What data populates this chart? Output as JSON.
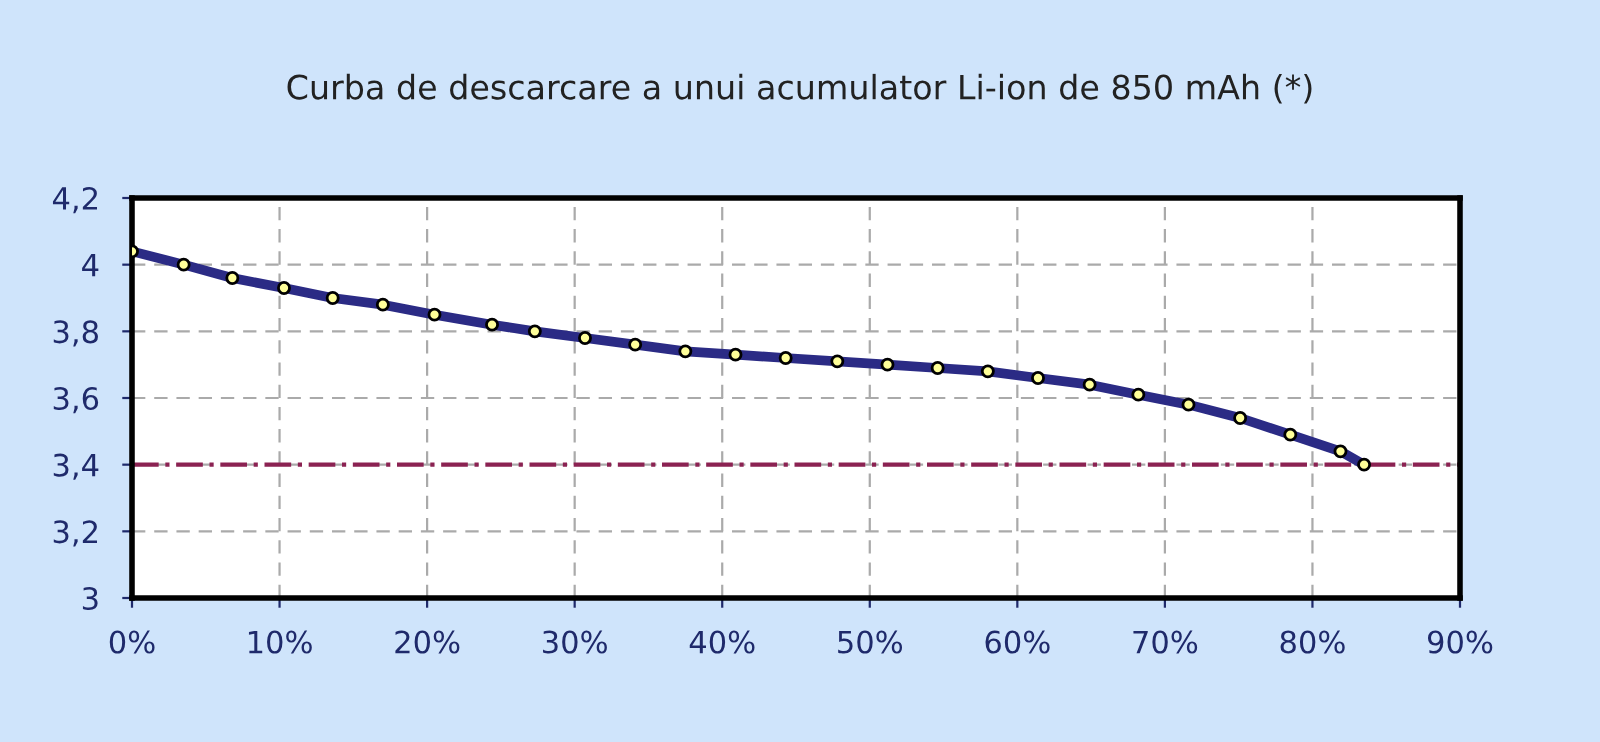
{
  "chart_data": {
    "type": "line",
    "title": "Curba de descarcare a unui acumulator Li-ion de 850 mAh (*)",
    "x": [
      0,
      3.5,
      6.8,
      10.3,
      13.6,
      17.0,
      20.5,
      24.4,
      27.3,
      30.7,
      34.1,
      37.5,
      40.9,
      44.3,
      47.8,
      51.2,
      54.6,
      58.0,
      61.4,
      64.9,
      68.2,
      71.6,
      75.1,
      78.5,
      81.9,
      83.5
    ],
    "series": [
      {
        "color": "#2b2b85",
        "values": [
          4.04,
          4.0,
          3.96,
          3.93,
          3.9,
          3.88,
          3.85,
          3.82,
          3.8,
          3.78,
          3.76,
          3.74,
          3.73,
          3.72,
          3.71,
          3.7,
          3.69,
          3.68,
          3.66,
          3.64,
          3.61,
          3.58,
          3.54,
          3.49,
          3.44,
          3.4
        ]
      }
    ],
    "xlim": [
      0,
      90
    ],
    "ylim": [
      3,
      4.2
    ],
    "xticks": [
      {
        "value": 0,
        "label": "0%"
      },
      {
        "value": 10,
        "label": "10%"
      },
      {
        "value": 20,
        "label": "20%"
      },
      {
        "value": 30,
        "label": "30%"
      },
      {
        "value": 40,
        "label": "40%"
      },
      {
        "value": 50,
        "label": "50%"
      },
      {
        "value": 60,
        "label": "60%"
      },
      {
        "value": 70,
        "label": "70%"
      },
      {
        "value": 80,
        "label": "80%"
      },
      {
        "value": 90,
        "label": "90%"
      }
    ],
    "yticks": [
      3,
      {
        "value": 3.2,
        "label": "3,2"
      },
      {
        "value": 3.4,
        "label": "3,4"
      },
      {
        "value": 3.6,
        "label": "3,6"
      },
      {
        "value": 3.8,
        "label": "3,8"
      },
      4,
      {
        "value": 4.2,
        "label": "4,2"
      }
    ],
    "ref_lines": [
      {
        "axis": "y",
        "value": 3.4,
        "label": null,
        "color": "#8b2252",
        "line_style": "dashdot"
      }
    ],
    "grid": true,
    "marker": "circle",
    "line_style": "solid"
  }
}
